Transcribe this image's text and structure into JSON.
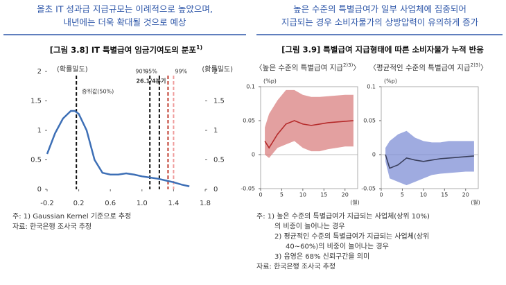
{
  "left": {
    "heading": [
      "올초 IT 성과급 지급규모는 이례적으로 높았으며,",
      "내년에는 더욱 확대될 것으로 예상"
    ],
    "notes": [
      "주: 1) Gaussian Kernel 기준으로 추정",
      "자료: 한국은행 조사국 추정"
    ]
  },
  "right": {
    "heading": [
      "높은 수준의 특별급여가 일부 사업체에 집중되어",
      "지급되는 경우 소비자물가의 상방압력이 유의하게 증가"
    ],
    "title": "[그림 3.9] 특별급여 지급형태에 따른 소비자물가 누적 반응",
    "notes": [
      "주: 1) 높은 수준의 특별급여가 지급되는 사업체(상위 10%)",
      "의 비중이 늘어나는 경우",
      "2) 평균적인 수준의 특별급여가 지급되는 사업체(상위",
      "40~60%)의 비중이 늘어나는 경우",
      "3) 음영은 68% 신뢰구간을 의미",
      "자료: 한국은행 조사국 추정"
    ]
  },
  "chart_data": [
    {
      "type": "line",
      "title": "[그림 3.8] IT 특별급여 임금기여도의 분포",
      "title_note": "1)",
      "ylabel": "(확률밀도)",
      "y2label": "(확률밀도)",
      "x": [
        -0.2,
        -0.1,
        0,
        0.1,
        0.15,
        0.2,
        0.3,
        0.4,
        0.5,
        0.6,
        0.7,
        0.8,
        0.9,
        1.0,
        1.1,
        1.2,
        1.3,
        1.4,
        1.5,
        1.6
      ],
      "series": [
        {
          "color": "#3d6fb6",
          "values": [
            0.6,
            0.95,
            1.2,
            1.33,
            1.33,
            1.28,
            1.0,
            0.5,
            0.28,
            0.25,
            0.25,
            0.27,
            0.25,
            0.22,
            0.2,
            0.18,
            0.15,
            0.12,
            0.08,
            0.05
          ]
        }
      ],
      "vlines": [
        {
          "x": 0.17,
          "label": "중위값(50%)",
          "color": "#111111"
        },
        {
          "x": 1.1,
          "label": "90%",
          "color": "#111111"
        },
        {
          "x": 1.22,
          "label": "95%",
          "color": "#111111"
        },
        {
          "x": 1.33,
          "label": "26.1/4분기",
          "color": "#c0392b"
        },
        {
          "x": 1.4,
          "label": "99%",
          "color": "#ef9a9a"
        }
      ],
      "xlim": [
        -0.2,
        1.8
      ],
      "xticks": [
        -0.2,
        0.2,
        0.6,
        {
          "value": 1,
          "label": "1.0"
        },
        1.4,
        1.8
      ],
      "ylim": [
        0,
        2
      ],
      "yticks": [
        0,
        0.5,
        1,
        1.5,
        2
      ],
      "y2lim": [
        0,
        2
      ],
      "y2ticks": [
        0,
        0.5,
        1,
        1.5,
        2
      ]
    },
    {
      "type": "band",
      "subtitle": "〈높은 수준의 특별급여 지급",
      "subtitle_note": "2)3)",
      "subtitle_end": "〉",
      "ylabel": "(%p)",
      "xlabel": "(월)",
      "x": [
        1,
        2,
        4,
        6,
        8,
        10,
        12,
        14,
        16,
        18,
        20,
        22
      ],
      "series": [
        {
          "color": "#b52a2a",
          "band_color": "#d98080",
          "values": [
            0.02,
            0.01,
            0.03,
            0.045,
            0.05,
            0.045,
            0.043,
            0.045,
            0.047,
            0.048,
            0.049,
            0.05
          ],
          "upper": [
            0.04,
            0.06,
            0.08,
            0.095,
            0.095,
            0.088,
            0.085,
            0.085,
            0.086,
            0.087,
            0.088,
            0.088
          ],
          "lower": [
            0,
            -0.005,
            0.01,
            0.015,
            0.02,
            0.01,
            0.005,
            0.005,
            0.008,
            0.01,
            0.012,
            0.012
          ]
        }
      ],
      "xlim": [
        0,
        23
      ],
      "xticks": [
        0,
        5,
        10,
        15,
        20
      ],
      "ylim": [
        -0.05,
        0.1
      ],
      "yticks": [
        -0.05,
        0,
        0.05,
        0.1
      ]
    },
    {
      "type": "band",
      "subtitle": "〈평균적인 수준의 특별급여 지급",
      "subtitle_note": "2)3)",
      "subtitle_end": "〉",
      "ylabel": "(%p)",
      "xlabel": "(월)",
      "x": [
        1,
        2,
        4,
        6,
        8,
        10,
        12,
        14,
        16,
        18,
        20,
        22
      ],
      "series": [
        {
          "color": "#3a3f5c",
          "band_color": "#7f8fd6",
          "values": [
            0,
            -0.02,
            -0.015,
            -0.005,
            -0.008,
            -0.01,
            -0.008,
            -0.006,
            -0.005,
            -0.004,
            -0.003,
            -0.002
          ],
          "upper": [
            0.01,
            0.02,
            0.03,
            0.035,
            0.025,
            0.02,
            0.018,
            0.018,
            0.02,
            0.02,
            0.02,
            0.02
          ],
          "lower": [
            -0.01,
            -0.035,
            -0.04,
            -0.045,
            -0.04,
            -0.035,
            -0.03,
            -0.028,
            -0.027,
            -0.026,
            -0.025,
            -0.025
          ]
        }
      ],
      "xlim": [
        0,
        23
      ],
      "xticks": [
        0,
        5,
        10,
        15,
        20
      ],
      "ylim": [
        -0.05,
        0.1
      ],
      "yticks": [
        -0.05,
        0,
        0.05,
        0.1
      ]
    }
  ]
}
